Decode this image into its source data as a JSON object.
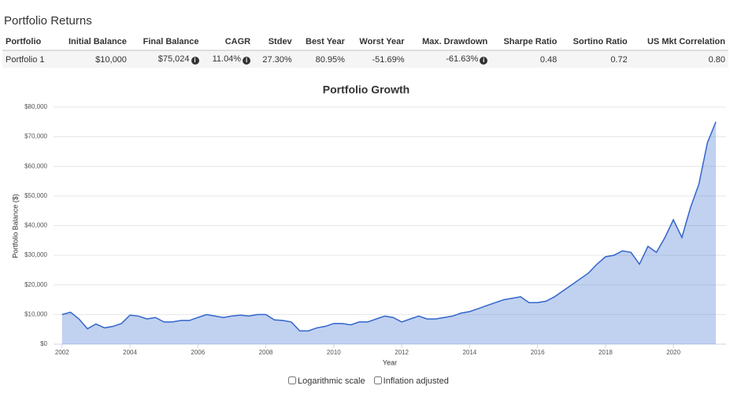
{
  "header": {
    "title": "Portfolio Returns"
  },
  "table": {
    "columns": [
      "Portfolio",
      "Initial Balance",
      "Final Balance",
      "CAGR",
      "Stdev",
      "Best Year",
      "Worst Year",
      "Max. Drawdown",
      "Sharpe Ratio",
      "Sortino Ratio",
      "US Mkt Correlation"
    ],
    "rows": [
      [
        "Portfolio 1",
        "$10,000",
        "$75,024",
        "11.04%",
        "27.30%",
        "80.95%",
        "-51.69%",
        "-61.63%",
        "0.48",
        "0.72",
        "0.80"
      ]
    ]
  },
  "chart_data": {
    "type": "area",
    "title": "Portfolio Growth",
    "y_label": "Portfolio Balance ($)",
    "x_label": "Year",
    "x": [
      2002,
      2002.25,
      2002.5,
      2002.75,
      2003,
      2003.25,
      2003.5,
      2003.75,
      2004,
      2004.25,
      2004.5,
      2004.75,
      2005,
      2005.25,
      2005.5,
      2005.75,
      2006,
      2006.25,
      2006.5,
      2006.75,
      2007,
      2007.25,
      2007.5,
      2007.75,
      2008,
      2008.25,
      2008.5,
      2008.75,
      2009,
      2009.25,
      2009.5,
      2009.75,
      2010,
      2010.25,
      2010.5,
      2010.75,
      2011,
      2011.25,
      2011.5,
      2011.75,
      2012,
      2012.25,
      2012.5,
      2012.75,
      2013,
      2013.25,
      2013.5,
      2013.75,
      2014,
      2014.25,
      2014.5,
      2014.75,
      2015,
      2015.25,
      2015.5,
      2015.75,
      2016,
      2016.25,
      2016.5,
      2016.75,
      2017,
      2017.25,
      2017.5,
      2017.75,
      2018,
      2018.25,
      2018.5,
      2018.75,
      2019,
      2019.25,
      2019.5,
      2019.75,
      2020,
      2020.25,
      2020.5,
      2020.75,
      2021,
      2021.25
    ],
    "series": [
      {
        "name": "Portfolio 1",
        "color": "#3366cc",
        "values": [
          10000,
          10800,
          8500,
          5200,
          6800,
          5500,
          6000,
          7000,
          9800,
          9500,
          8500,
          9000,
          7500,
          7500,
          8000,
          8000,
          9000,
          10000,
          9500,
          9000,
          9500,
          9800,
          9500,
          10000,
          10000,
          8200,
          8000,
          7500,
          4500,
          4500,
          5500,
          6000,
          7000,
          7000,
          6500,
          7500,
          7500,
          8500,
          9500,
          9000,
          7500,
          8500,
          9500,
          8500,
          8500,
          9000,
          9500,
          10500,
          11000,
          12000,
          13000,
          14000,
          15000,
          15500,
          16000,
          14000,
          14000,
          14500,
          16000,
          18000,
          20000,
          22000,
          24000,
          27000,
          29500,
          30000,
          31500,
          31000,
          27000,
          33000,
          31000,
          36000,
          42000,
          36000,
          46000,
          54000,
          68000,
          75024
        ]
      }
    ],
    "xlim": [
      2001.75,
      2021.55
    ],
    "xticks": [
      2002,
      2004,
      2006,
      2008,
      2010,
      2012,
      2014,
      2016,
      2018,
      2020
    ],
    "ylim": [
      0,
      80000
    ],
    "yticks": [
      {
        "value": 0,
        "label": "$0"
      },
      {
        "value": 10000,
        "label": "$10,000"
      },
      {
        "value": 20000,
        "label": "$20,000"
      },
      {
        "value": 30000,
        "label": "$30,000"
      },
      {
        "value": 40000,
        "label": "$40,000"
      },
      {
        "value": 50000,
        "label": "$50,000"
      },
      {
        "value": 60000,
        "label": "$60,000"
      },
      {
        "value": 70000,
        "label": "$70,000"
      },
      {
        "value": 80000,
        "label": "$80,000"
      }
    ],
    "grid": true
  },
  "options": [
    "Logarithmic scale",
    "Inflation adjusted"
  ]
}
